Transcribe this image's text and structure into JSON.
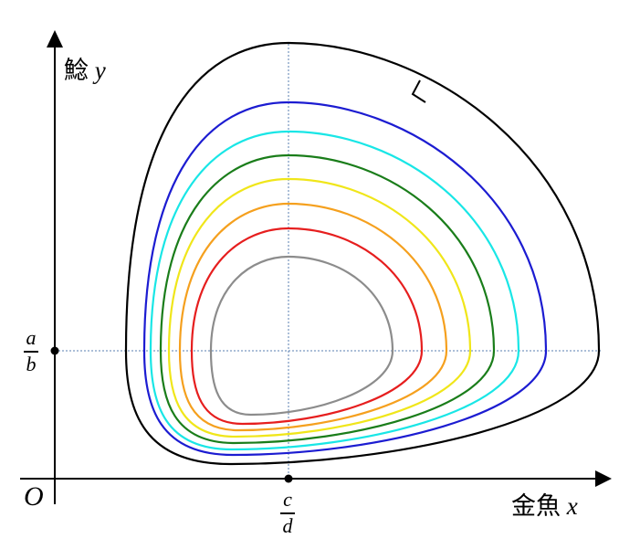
{
  "axes": {
    "x_label_kanji": "金魚",
    "x_label_var": "x",
    "y_label_kanji": "鯰",
    "y_label_var": "y",
    "origin_label": "O"
  },
  "equilibrium": {
    "x_fraction": {
      "numerator": "c",
      "denominator": "d"
    },
    "y_fraction": {
      "numerator": "a",
      "denominator": "b"
    }
  },
  "orbits": [
    {
      "color": "#000000"
    },
    {
      "color": "#1c1cd1"
    },
    {
      "color": "#19e6e6"
    },
    {
      "color": "#1a7d1a"
    },
    {
      "color": "#f0e61a"
    },
    {
      "color": "#f5a01e"
    },
    {
      "color": "#e61e1e"
    },
    {
      "color": "#8c8c8c"
    }
  ],
  "guide_color": "#5a7fb0"
}
